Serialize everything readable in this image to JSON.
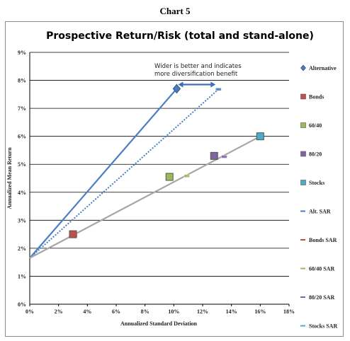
{
  "page": {
    "heading": "Chart 5"
  },
  "colors": {
    "alternative": "#4a7ec1",
    "bonds": "#c0504d",
    "m6040": "#9bbb59",
    "m8020": "#8064a2",
    "stocks": "#4bacc6",
    "sar": "#a6a6a6",
    "arrow": "#3d6fb6"
  },
  "chart_data": {
    "type": "scatter",
    "title": "Prospective Return/Risk (total and stand-alone)",
    "xlabel": "Annualized Standard Deviation",
    "ylabel": "Annualized Mean Return",
    "xlim": [
      0,
      18
    ],
    "ylim": [
      0,
      9
    ],
    "x_ticks": [
      "0%",
      "2%",
      "4%",
      "6%",
      "8%",
      "10%",
      "12%",
      "14%",
      "16%",
      "18%"
    ],
    "y_ticks": [
      "0%",
      "1%",
      "2%",
      "3%",
      "4%",
      "5%",
      "6%",
      "7%",
      "8%",
      "9%"
    ],
    "grid": "horizontal",
    "legend_position": "right",
    "annotation": {
      "lines": [
        "Wider is better and indicates",
        "more diversification benefit"
      ]
    },
    "points": [
      {
        "name": "Alternative",
        "x": 10.2,
        "y": 7.7,
        "marker": "diamond",
        "color_key": "alternative"
      },
      {
        "name": "Bonds",
        "x": 3.0,
        "y": 2.5,
        "marker": "square",
        "color_key": "bonds"
      },
      {
        "name": "60/40",
        "x": 9.7,
        "y": 4.55,
        "marker": "square",
        "color_key": "m6040"
      },
      {
        "name": "80/20",
        "x": 12.8,
        "y": 5.3,
        "marker": "square",
        "color_key": "m8020"
      },
      {
        "name": "Stocks",
        "x": 16.0,
        "y": 6.0,
        "marker": "square",
        "color_key": "stocks"
      }
    ],
    "sar_points": [
      {
        "name": "Alt. SAR",
        "x": 13.1,
        "y": 7.68,
        "color_key": "alternative"
      },
      {
        "name": "Bonds SAR",
        "x": 3.1,
        "y": 2.45,
        "color_key": "bonds"
      },
      {
        "name": "60/40 SAR",
        "x": 10.9,
        "y": 4.58,
        "color_key": "m6040"
      },
      {
        "name": "80/20 SAR",
        "x": 13.5,
        "y": 5.27,
        "color_key": "m8020"
      },
      {
        "name": "Stocks SAR",
        "x": 16.0,
        "y": 6.0,
        "color_key": "stocks"
      }
    ],
    "lines": [
      {
        "name": "Alternative line",
        "from": [
          0,
          1.65
        ],
        "to": [
          10.2,
          7.7
        ],
        "style": "solid",
        "color_key": "alternative"
      },
      {
        "name": "Alt. SAR line",
        "from": [
          0,
          1.65
        ],
        "to": [
          13.1,
          7.68
        ],
        "style": "dotted",
        "color_key": "alternative"
      },
      {
        "name": "Stand-alone line",
        "from": [
          0,
          1.65
        ],
        "to": [
          16.0,
          6.0
        ],
        "style": "solid",
        "color_key": "sar"
      }
    ],
    "arrow": {
      "from": [
        10.3,
        7.85
      ],
      "to": [
        12.9,
        7.85
      ]
    },
    "legend": [
      {
        "label": "Alternative",
        "marker": "diamond",
        "color_key": "alternative"
      },
      {
        "label": "Bonds",
        "marker": "square",
        "color_key": "bonds"
      },
      {
        "label": "60/40",
        "marker": "square",
        "color_key": "m6040"
      },
      {
        "label": "80/20",
        "marker": "square",
        "color_key": "m8020"
      },
      {
        "label": "Stocks",
        "marker": "square",
        "color_key": "stocks"
      },
      {
        "label": "Alt. SAR",
        "marker": "dash",
        "color_key": "alternative"
      },
      {
        "label": "Bonds SAR",
        "marker": "dash",
        "color_key": "bonds"
      },
      {
        "label": "60/40 SAR",
        "marker": "dash",
        "color_key": "m6040"
      },
      {
        "label": "80/20 SAR",
        "marker": "dash",
        "color_key": "m8020"
      },
      {
        "label": "Stocks SAR",
        "marker": "dash",
        "color_key": "stocks"
      }
    ]
  }
}
